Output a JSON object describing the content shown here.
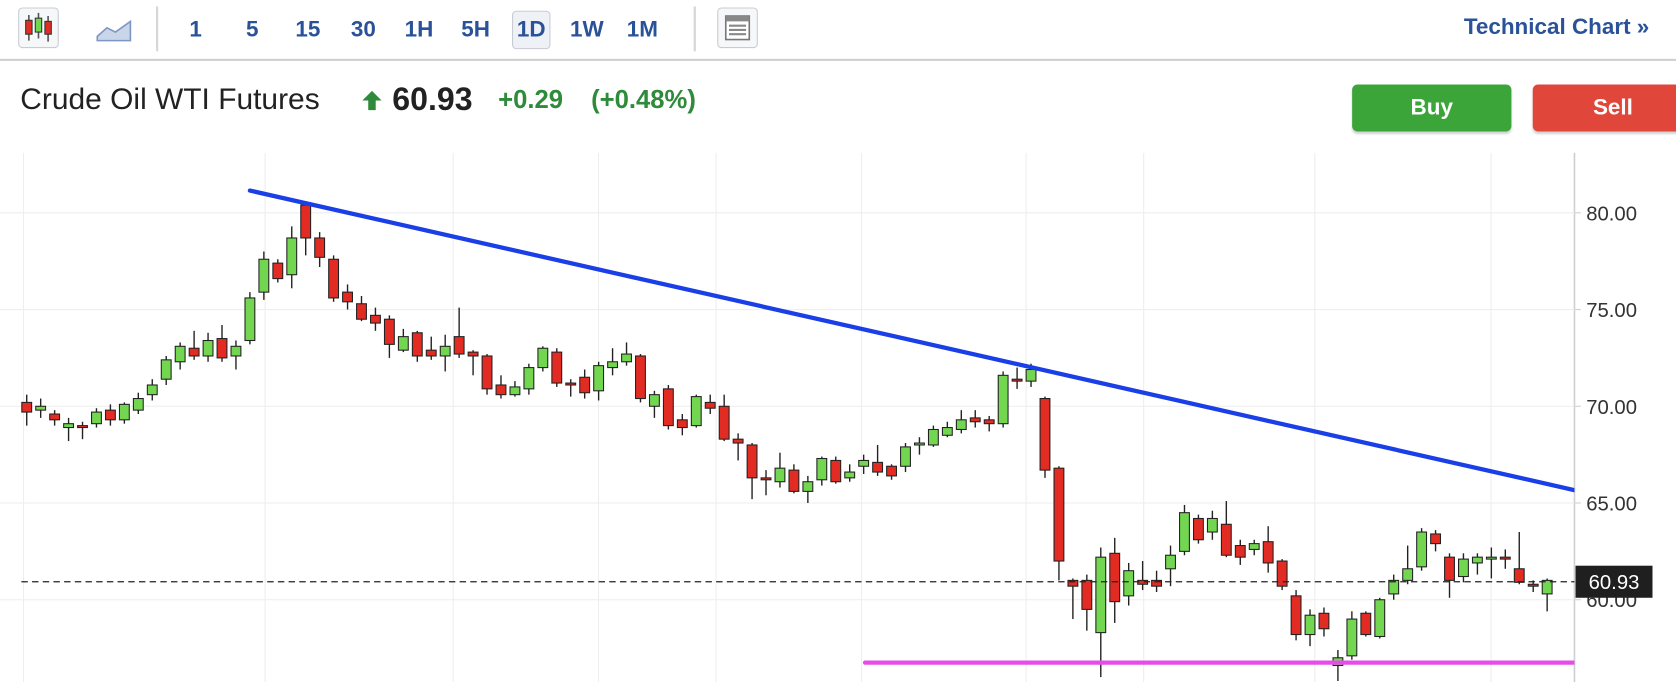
{
  "toolbar": {
    "intervals": [
      "1",
      "5",
      "15",
      "30",
      "1H",
      "5H",
      "1D",
      "1W",
      "1M"
    ],
    "selected_index": 6,
    "link": "Technical Chart »"
  },
  "header": {
    "title": "Crude Oil WTI Futures",
    "price": "60.93",
    "change": "+0.29",
    "change_pct": "(+0.48%)",
    "buy": "Buy",
    "sell": "Sell"
  },
  "chart_data": {
    "type": "candlestick",
    "series": {
      "open": [
        70.2,
        69.8,
        69.6,
        68.9,
        69.0,
        69.1,
        69.8,
        69.3,
        69.8,
        70.6,
        71.4,
        72.3,
        73.0,
        72.6,
        73.5,
        72.6,
        73.4,
        75.9,
        77.4,
        76.8,
        80.4,
        78.7,
        77.6,
        75.9,
        75.3,
        74.7,
        74.5,
        72.9,
        73.8,
        72.9,
        72.6,
        73.6,
        72.8,
        72.6,
        71.1,
        70.6,
        70.9,
        72.0,
        72.8,
        71.2,
        71.5,
        70.8,
        72.0,
        72.3,
        72.6,
        70.0,
        70.9,
        69.3,
        69.0,
        70.2,
        70.0,
        68.3,
        68.0,
        66.3,
        66.1,
        66.7,
        65.6,
        66.2,
        67.2,
        66.3,
        66.9,
        67.1,
        66.9,
        66.9,
        68.0,
        68.0,
        68.5,
        68.8,
        69.4,
        69.3,
        69.1,
        71.4,
        71.3,
        70.4,
        66.8,
        61.0,
        61.0,
        58.3,
        62.4,
        60.2,
        61.0,
        61.0,
        61.6,
        62.5,
        64.2,
        63.5,
        63.9,
        62.8,
        62.6,
        63.0,
        62.0,
        60.2,
        58.2,
        59.3,
        56.6,
        57.1,
        59.3,
        58.1,
        60.3,
        61.0,
        61.7,
        63.4,
        62.2,
        61.2,
        61.9,
        62.1,
        62.2,
        61.6,
        60.8,
        60.3
      ],
      "high": [
        70.6,
        70.4,
        69.8,
        69.4,
        69.2,
        69.9,
        70.1,
        70.2,
        70.7,
        71.4,
        72.6,
        73.3,
        73.9,
        73.8,
        74.2,
        73.4,
        75.9,
        78.0,
        77.6,
        79.3,
        80.6,
        79.0,
        77.8,
        76.3,
        75.7,
        75.1,
        74.7,
        74.0,
        73.9,
        73.6,
        73.7,
        75.1,
        72.9,
        72.7,
        71.6,
        71.3,
        72.2,
        73.1,
        73.0,
        71.4,
        71.9,
        72.3,
        73.0,
        73.3,
        72.7,
        70.8,
        71.1,
        69.6,
        70.6,
        70.6,
        70.6,
        68.6,
        68.1,
        66.7,
        67.6,
        67.0,
        66.4,
        67.4,
        67.4,
        67.0,
        67.5,
        68.0,
        67.0,
        68.1,
        68.4,
        69.0,
        69.2,
        69.8,
        69.8,
        69.5,
        71.8,
        72.0,
        72.2,
        70.5,
        66.9,
        61.1,
        61.3,
        62.7,
        63.2,
        61.9,
        62.0,
        61.5,
        62.8,
        64.9,
        64.4,
        64.6,
        65.1,
        63.1,
        63.1,
        63.8,
        62.1,
        60.5,
        59.5,
        59.6,
        57.4,
        59.4,
        59.4,
        60.1,
        61.3,
        62.8,
        63.7,
        63.6,
        62.4,
        62.4,
        62.4,
        62.7,
        62.6,
        63.5,
        61.0,
        61.1
      ],
      "low": [
        69.0,
        69.4,
        69.0,
        68.2,
        68.3,
        68.9,
        69.0,
        69.1,
        69.6,
        70.3,
        71.1,
        71.9,
        72.4,
        72.3,
        72.3,
        71.9,
        73.2,
        75.5,
        76.4,
        76.1,
        77.8,
        77.2,
        75.4,
        75.0,
        74.4,
        73.9,
        72.5,
        72.8,
        72.3,
        72.4,
        71.8,
        72.5,
        71.6,
        70.6,
        70.4,
        70.5,
        70.6,
        71.8,
        71.0,
        70.5,
        70.4,
        70.3,
        71.6,
        72.1,
        70.2,
        69.4,
        68.8,
        68.5,
        68.9,
        69.6,
        68.2,
        67.2,
        65.2,
        65.4,
        65.8,
        65.5,
        65.0,
        65.9,
        66.0,
        66.1,
        66.5,
        66.4,
        66.2,
        66.6,
        67.5,
        67.9,
        68.4,
        68.6,
        68.9,
        68.7,
        68.9,
        70.9,
        71.0,
        66.3,
        61.0,
        59.0,
        58.4,
        56.0,
        58.8,
        59.7,
        60.5,
        60.4,
        60.7,
        62.3,
        62.9,
        63.1,
        62.2,
        61.8,
        62.3,
        61.4,
        60.5,
        57.9,
        57.6,
        58.1,
        55.8,
        56.9,
        58.1,
        58.0,
        60.0,
        60.8,
        61.5,
        62.5,
        60.1,
        60.9,
        61.3,
        61.1,
        61.6,
        60.8,
        60.4,
        59.4
      ],
      "close": [
        69.7,
        70.0,
        69.3,
        69.1,
        68.9,
        69.7,
        69.3,
        70.1,
        70.4,
        71.1,
        72.4,
        73.1,
        72.6,
        73.4,
        72.5,
        73.1,
        75.6,
        77.6,
        76.6,
        78.7,
        78.7,
        77.7,
        75.6,
        75.4,
        74.5,
        74.3,
        73.2,
        73.6,
        72.6,
        72.6,
        73.1,
        72.7,
        72.6,
        70.9,
        70.6,
        71.0,
        72.0,
        73.0,
        71.2,
        71.1,
        70.7,
        72.1,
        72.3,
        72.7,
        70.4,
        70.6,
        69.0,
        68.9,
        70.5,
        69.9,
        68.3,
        68.1,
        66.3,
        66.2,
        66.8,
        65.6,
        66.1,
        67.3,
        66.1,
        66.6,
        67.2,
        66.6,
        66.4,
        67.9,
        68.1,
        68.8,
        68.9,
        69.3,
        69.2,
        69.1,
        71.6,
        71.3,
        71.9,
        66.7,
        62.0,
        60.7,
        59.5,
        62.2,
        59.9,
        61.5,
        60.8,
        60.7,
        62.3,
        64.5,
        63.1,
        64.2,
        62.3,
        62.2,
        62.9,
        61.9,
        60.7,
        58.2,
        59.2,
        58.5,
        57.0,
        59.0,
        58.2,
        60.0,
        61.0,
        61.6,
        63.5,
        62.9,
        61.0,
        62.1,
        62.2,
        62.2,
        62.1,
        60.9,
        60.7,
        61.0
      ]
    },
    "up_color": "#72d650",
    "down_color": "#e22b22",
    "ylim": [
      55.75,
      83.1
    ],
    "yticks": [
      {
        "value": 60,
        "label": "60.00"
      },
      {
        "value": 65,
        "label": "65.00"
      },
      {
        "value": 70,
        "label": "70.00"
      },
      {
        "value": 75,
        "label": "75.00"
      },
      {
        "value": 80,
        "label": "80.00"
      }
    ],
    "grid": true,
    "last_price": 60.93,
    "trendlines": [
      {
        "color": "#1a3fe6",
        "start": [
          16,
          81.15
        ],
        "end": [
          113.5,
          65.25
        ]
      },
      {
        "color": "#e64de8",
        "start": [
          60.1,
          56.75
        ],
        "end": [
          118,
          56.75
        ]
      }
    ]
  }
}
